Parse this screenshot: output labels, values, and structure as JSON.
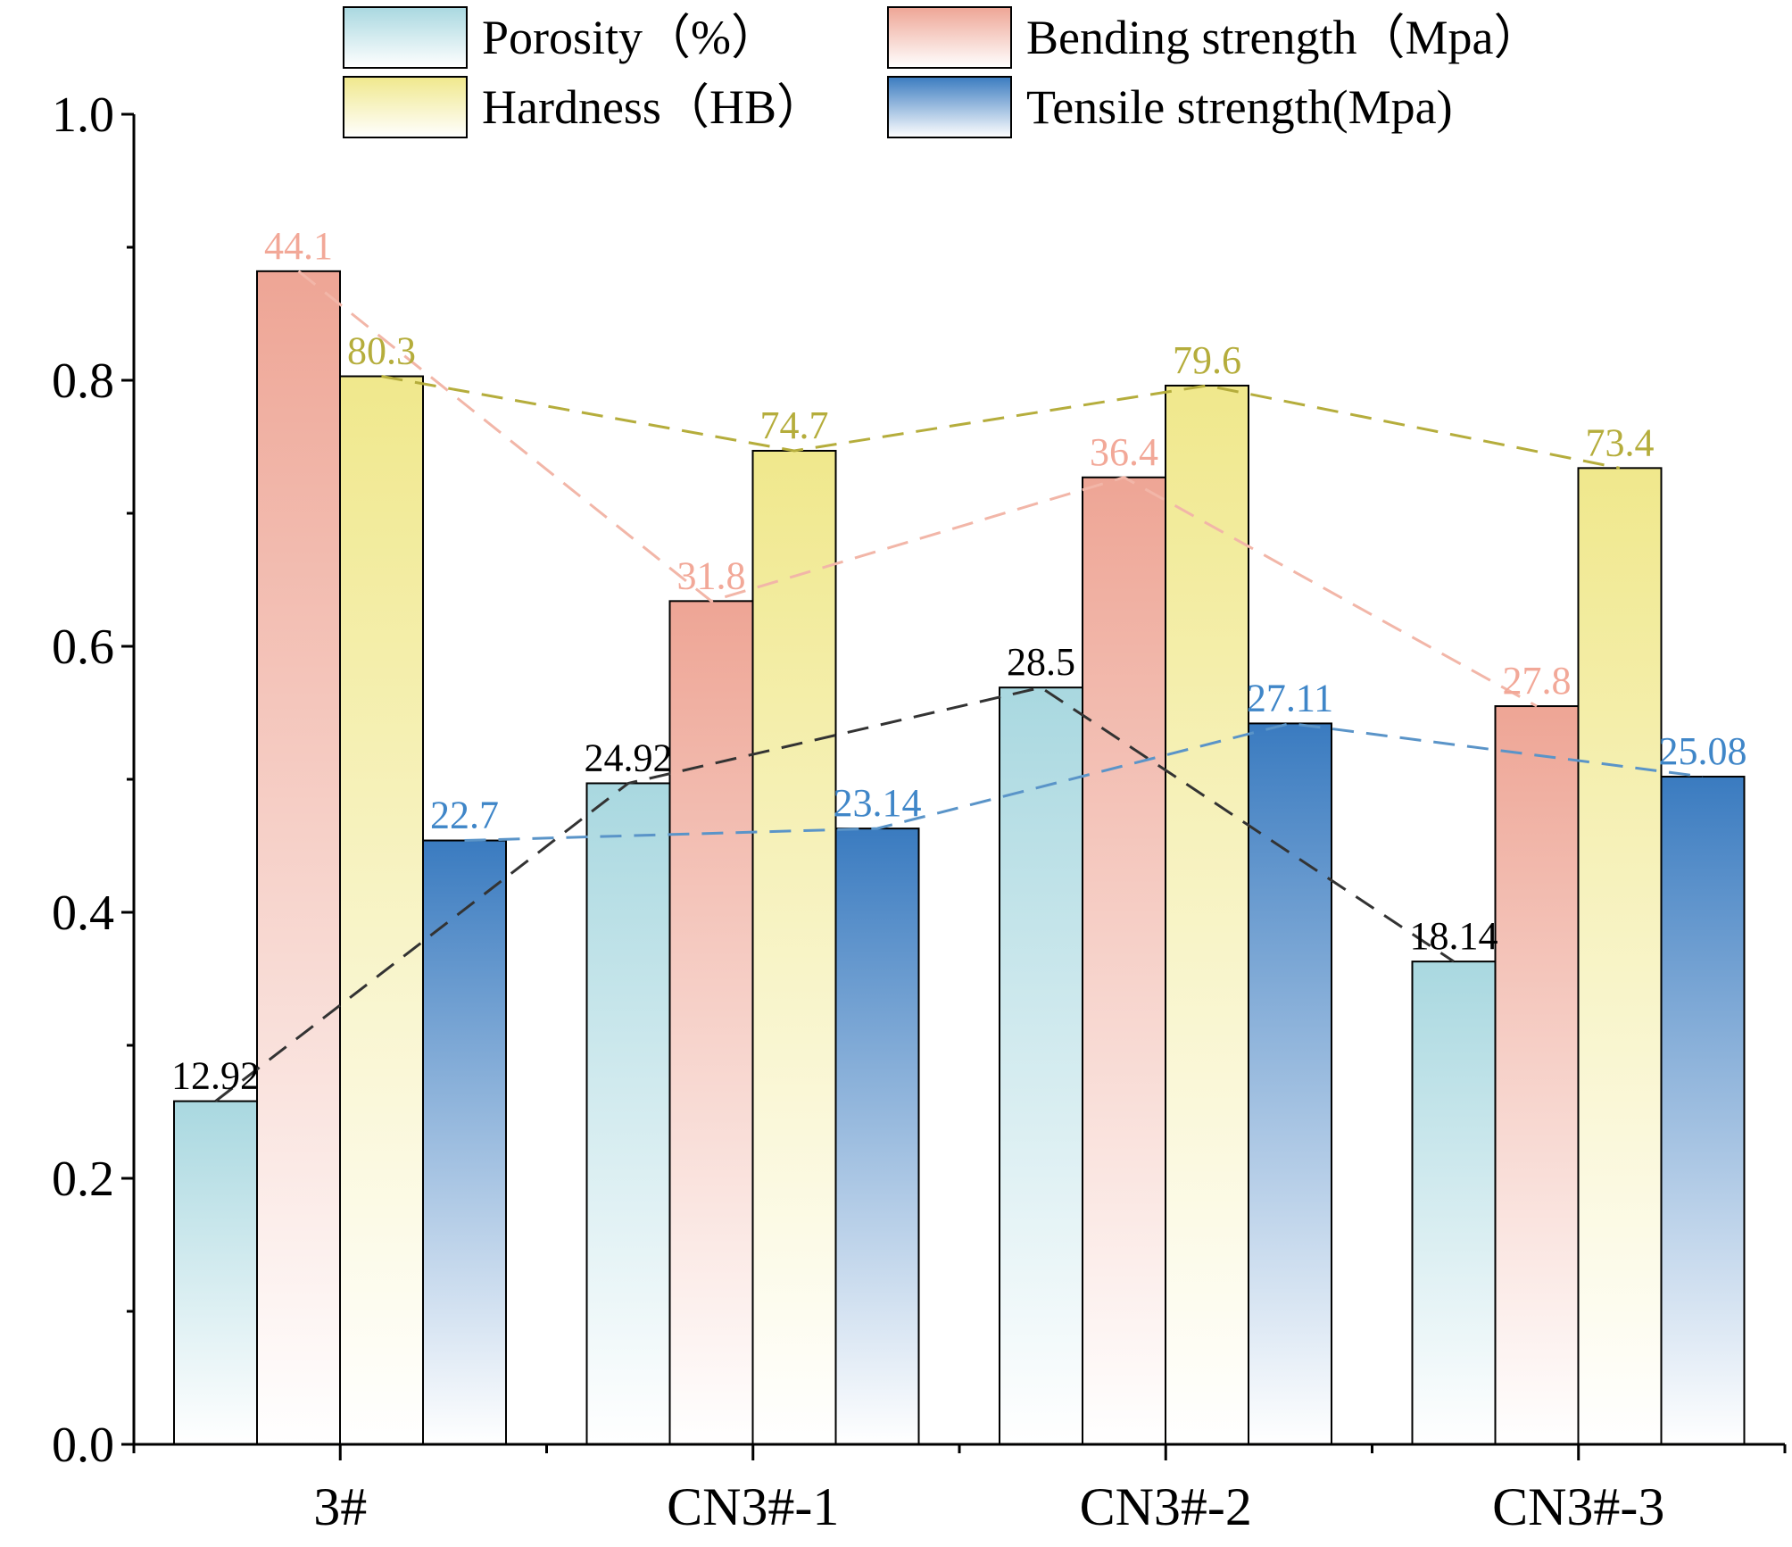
{
  "chart_data": {
    "type": "bar",
    "title": "",
    "xlabel": "",
    "ylabel": "",
    "ylim": [
      0,
      1.0
    ],
    "yticks": [
      "0.0",
      "0.2",
      "0.4",
      "0.6",
      "0.8",
      "1.0"
    ],
    "categories": [
      "3#",
      "CN3#-1",
      "CN3#-2",
      "CN3#-3"
    ],
    "series": [
      {
        "name": "Porosity（%）",
        "values": [
          0.258,
          0.497,
          0.569,
          0.363
        ],
        "labels": [
          "12.92",
          "24.92",
          "28.5",
          "18.14"
        ],
        "color_top": "#a9d8e0",
        "color_bottom": "#ffffff",
        "line_color": "#333333",
        "label_color": "#000000"
      },
      {
        "name": "Bending strength（Mpa）",
        "values": [
          0.882,
          0.634,
          0.727,
          0.555
        ],
        "labels": [
          "44.1",
          "31.8",
          "36.4",
          "27.8"
        ],
        "color_top": "#eea595",
        "color_bottom": "#ffffff",
        "line_color": "#f2b6a8",
        "label_color": "#f2a898"
      },
      {
        "name": "Hardness（HB）",
        "values": [
          0.803,
          0.747,
          0.796,
          0.734
        ],
        "labels": [
          "80.3",
          "74.7",
          "79.6",
          "73.4"
        ],
        "color_top": "#f0e88c",
        "color_bottom": "#ffffff",
        "line_color": "#b5ad3c",
        "label_color": "#b5ad3c"
      },
      {
        "name": "Tensile strength(Mpa)",
        "values": [
          0.454,
          0.463,
          0.542,
          0.502
        ],
        "labels": [
          "22.7",
          "23.14",
          "27.11",
          "25.08"
        ],
        "color_top": "#3a7bc0",
        "color_bottom": "#ffffff",
        "line_color": "#5a94c8",
        "label_color": "#3f86c8"
      }
    ],
    "legend": "top-center"
  }
}
